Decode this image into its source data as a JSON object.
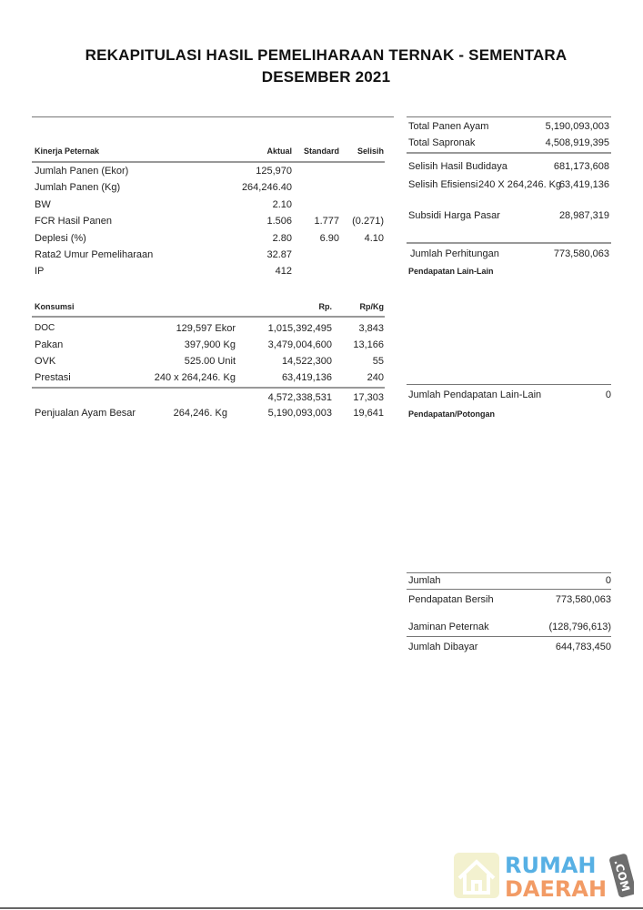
{
  "title": {
    "line1": "REKAPITULASI HASIL PEMELIHARAAN TERNAK - SEMENTARA",
    "line2": "DESEMBER 2021"
  },
  "kinerja": {
    "headers": [
      "Kinerja Peternak",
      "Aktual",
      "Standard",
      "Selisih"
    ],
    "rows": [
      {
        "label": "Jumlah Panen (Ekor)",
        "aktual": "125,970",
        "standard": "",
        "selisih": ""
      },
      {
        "label": "Jumlah Panen (Kg)",
        "aktual": "264,246.40",
        "standard": "",
        "selisih": ""
      },
      {
        "label": "BW",
        "aktual": "2.10",
        "standard": "",
        "selisih": ""
      },
      {
        "label": "FCR Hasil Panen",
        "aktual": "1.506",
        "standard": "1.777",
        "selisih": "(0.271)"
      },
      {
        "label": "Deplesi (%)",
        "aktual": "2.80",
        "standard": "6.90",
        "selisih": "4.10"
      },
      {
        "label": "Rata2 Umur Pemeliharaan",
        "aktual": "32.87",
        "standard": "",
        "selisih": ""
      },
      {
        "label": "IP",
        "aktual": "412",
        "standard": "",
        "selisih": ""
      }
    ]
  },
  "konsumsi": {
    "headers": [
      "Konsumsi",
      "Rp.",
      "Rp/Kg"
    ],
    "rows": [
      {
        "label": "DOC",
        "qty": "129,597 Ekor",
        "rp": "1,015,392,495",
        "rpkg": "3,843"
      },
      {
        "label": "Pakan",
        "qty": "397,900 Kg",
        "rp": "3,479,004,600",
        "rpkg": "13,166"
      },
      {
        "label": "OVK",
        "qty": "525.00 Unit",
        "rp": "14,522,300",
        "rpkg": "55"
      },
      {
        "label": "Prestasi",
        "qty": "240 x 264,246. Kg",
        "rp": "63,419,136",
        "rpkg": "240"
      }
    ],
    "total": {
      "rp": "4,572,338,531",
      "rpkg": "17,303"
    },
    "penjualan": {
      "label": "Penjualan Ayam Besar",
      "qty": "264,246. Kg",
      "rp": "5,190,093,003",
      "rpkg": "19,641"
    }
  },
  "summary": {
    "total_panen": {
      "label": "Total Panen Ayam",
      "value": "5,190,093,003"
    },
    "total_sapronak": {
      "label": "Total Sapronak",
      "value": "4,508,919,395"
    },
    "selisih_hasil": {
      "label": "Selisih Hasil Budidaya",
      "value": "681,173,608"
    },
    "selisih_efisiensi": {
      "label": "Selisih Efisiensi",
      "detail": "240 X 264,246. Kg",
      "value": "63,419,136"
    },
    "subsidi": {
      "label": "Subsidi Harga Pasar",
      "value": "28,987,319"
    },
    "jumlah_perhitungan": {
      "label": "Jumlah Perhitungan",
      "value": "773,580,063"
    },
    "pendapatan_lain_heading": "Pendapatan Lain-Lain",
    "jumlah_pendapatan_lain": {
      "label": "Jumlah Pendapatan Lain-Lain",
      "value": "0"
    },
    "potongan_heading": "Pendapatan/Potongan",
    "jumlah": {
      "label": "Jumlah",
      "value": "0"
    },
    "pendapatan_bersih": {
      "label": "Pendapatan Bersih",
      "value": "773,580,063"
    },
    "jaminan": {
      "label": "Jaminan Peternak",
      "value": "(128,796,613)"
    },
    "jumlah_dibayar": {
      "label": "Jumlah Dibayar",
      "value": "644,783,450"
    }
  },
  "watermark": {
    "line1": "RUMAH",
    "line2": "DAERAH",
    "suffix": ".COM",
    "colors": {
      "blue": "#3aa3e0",
      "orange": "#f08a4b",
      "tag": "#555555"
    }
  }
}
